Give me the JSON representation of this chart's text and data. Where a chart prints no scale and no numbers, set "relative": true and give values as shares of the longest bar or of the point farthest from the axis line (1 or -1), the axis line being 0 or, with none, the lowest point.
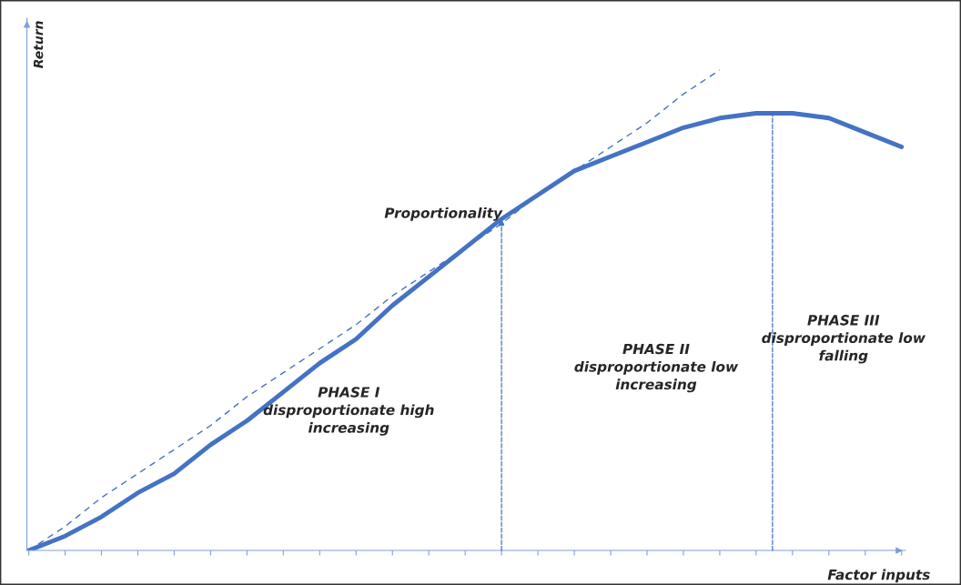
{
  "chart_data": {
    "type": "line",
    "relative": true,
    "xlabel": "Factor inputs",
    "ylabel": "Return",
    "categories": [
      null,
      null,
      null,
      null,
      null,
      null,
      null,
      null,
      null,
      null,
      null,
      null,
      null,
      null,
      null,
      null,
      null,
      null,
      null,
      null,
      null,
      null,
      null,
      null,
      null
    ],
    "series": [
      {
        "color": "#4472c4",
        "values": [
          0,
          0.03,
          0.07,
          0.12,
          0.16,
          0.22,
          0.27,
          0.33,
          0.39,
          0.44,
          0.51,
          0.57,
          0.63,
          0.69,
          0.74,
          0.79,
          0.82,
          0.85,
          0.88,
          0.9,
          0.91,
          0.91,
          0.9,
          0.87,
          0.84
        ]
      },
      {
        "color": "#4472c4",
        "line_style": "dashed",
        "values": [
          0,
          0.05,
          0.11,
          0.16,
          0.21,
          0.26,
          0.32,
          0.37,
          0.42,
          0.47,
          0.53,
          0.58,
          0.63,
          0.68,
          0.74,
          0.79,
          0.84,
          0.89,
          0.95,
          1.0,
          null,
          null,
          null,
          null,
          null
        ]
      }
    ],
    "annotations": [
      "Proportionality",
      "PHASE I\ndisproportionate high\nincreasing",
      "PHASE II\ndisproportionate low\nincreasing",
      "PHASE III\ndisproportionate low\nfalling"
    ]
  }
}
